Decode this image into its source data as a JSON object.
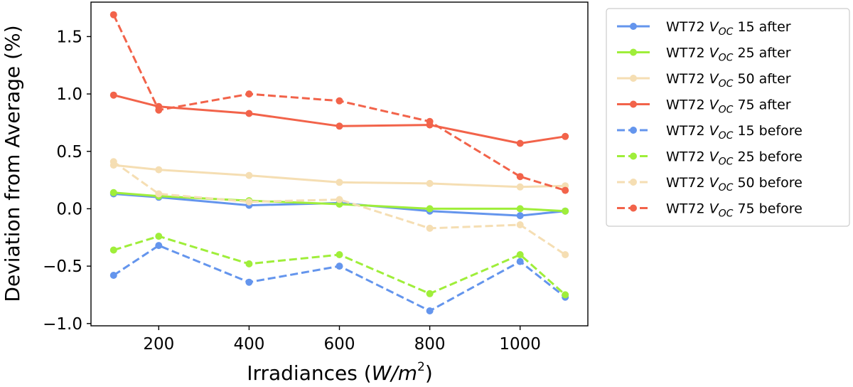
{
  "chart_data": {
    "type": "line",
    "title": "",
    "xlabel": "Irradiances (W/m2)",
    "ylabel": "Deviation from Average (%)",
    "xlim": [
      50,
      1150
    ],
    "ylim": [
      -1.02,
      1.8
    ],
    "xticks": [
      200,
      400,
      600,
      800,
      1000
    ],
    "xtick_labels": [
      "200",
      "400",
      "600",
      "800",
      "1000"
    ],
    "yticks": [
      -1.0,
      -0.5,
      0.0,
      0.5,
      1.0,
      1.5
    ],
    "ytick_labels": [
      "−1.0",
      "−0.5",
      "0.0",
      "0.5",
      "1.0",
      "1.5"
    ],
    "grid": false,
    "legend_position": "outside-right",
    "x": [
      100,
      200,
      400,
      600,
      800,
      1000,
      1100
    ],
    "series": [
      {
        "name": "WT72 VOC 15 after",
        "legend": {
          "prefix": "WT72 ",
          "var": "V",
          "sub": "OC",
          "suffix": " 15 after"
        },
        "color": "#6495ED",
        "style": "solid",
        "values": [
          0.13,
          0.1,
          0.03,
          0.05,
          -0.02,
          -0.06,
          -0.02
        ]
      },
      {
        "name": "WT72 VOC 25 after",
        "legend": {
          "prefix": "WT72 ",
          "var": "V",
          "sub": "OC",
          "suffix": " 25 after"
        },
        "color": "#9FEE3A",
        "style": "solid",
        "values": [
          0.14,
          0.11,
          0.07,
          0.04,
          0.0,
          0.0,
          -0.02
        ]
      },
      {
        "name": "WT72 VOC 50 after",
        "legend": {
          "prefix": "WT72 ",
          "var": "V",
          "sub": "OC",
          "suffix": " 50 after"
        },
        "color": "#F5DEB3",
        "style": "solid",
        "values": [
          0.38,
          0.34,
          0.29,
          0.23,
          0.22,
          0.19,
          0.2
        ]
      },
      {
        "name": "WT72 VOC 75 after",
        "legend": {
          "prefix": "WT72 ",
          "var": "V",
          "sub": "OC",
          "suffix": " 75 after"
        },
        "color": "#F2634A",
        "style": "solid",
        "values": [
          0.99,
          0.89,
          0.83,
          0.72,
          0.73,
          0.57,
          0.63
        ]
      },
      {
        "name": "WT72 VOC 15 before",
        "legend": {
          "prefix": "WT72 ",
          "var": "V",
          "sub": "OC",
          "suffix": " 15 before"
        },
        "color": "#6495ED",
        "style": "dashed",
        "values": [
          -0.58,
          -0.32,
          -0.64,
          -0.5,
          -0.89,
          -0.46,
          -0.77
        ]
      },
      {
        "name": "WT72 VOC 25 before",
        "legend": {
          "prefix": "WT72 ",
          "var": "V",
          "sub": "OC",
          "suffix": " 25 before"
        },
        "color": "#9FEE3A",
        "style": "dashed",
        "values": [
          -0.36,
          -0.24,
          -0.48,
          -0.4,
          -0.74,
          -0.4,
          -0.75
        ]
      },
      {
        "name": "WT72 VOC 50 before",
        "legend": {
          "prefix": "WT72 ",
          "var": "V",
          "sub": "OC",
          "suffix": " 50 before"
        },
        "color": "#F5DEB3",
        "style": "dashed",
        "values": [
          0.41,
          0.13,
          0.06,
          0.08,
          -0.17,
          -0.14,
          -0.4
        ]
      },
      {
        "name": "WT72 VOC 75 before",
        "legend": {
          "prefix": "WT72 ",
          "var": "V",
          "sub": "OC",
          "suffix": " 75 before"
        },
        "color": "#F2634A",
        "style": "dashed",
        "values": [
          1.69,
          0.86,
          1.0,
          0.94,
          0.76,
          0.28,
          0.16
        ]
      }
    ]
  },
  "axis_text": {
    "xlabel_main": "Irradiances (",
    "xlabel_unit": "W/m",
    "xlabel_exp": "2",
    "xlabel_close": ")",
    "ylabel": "Deviation from Average (%)"
  }
}
